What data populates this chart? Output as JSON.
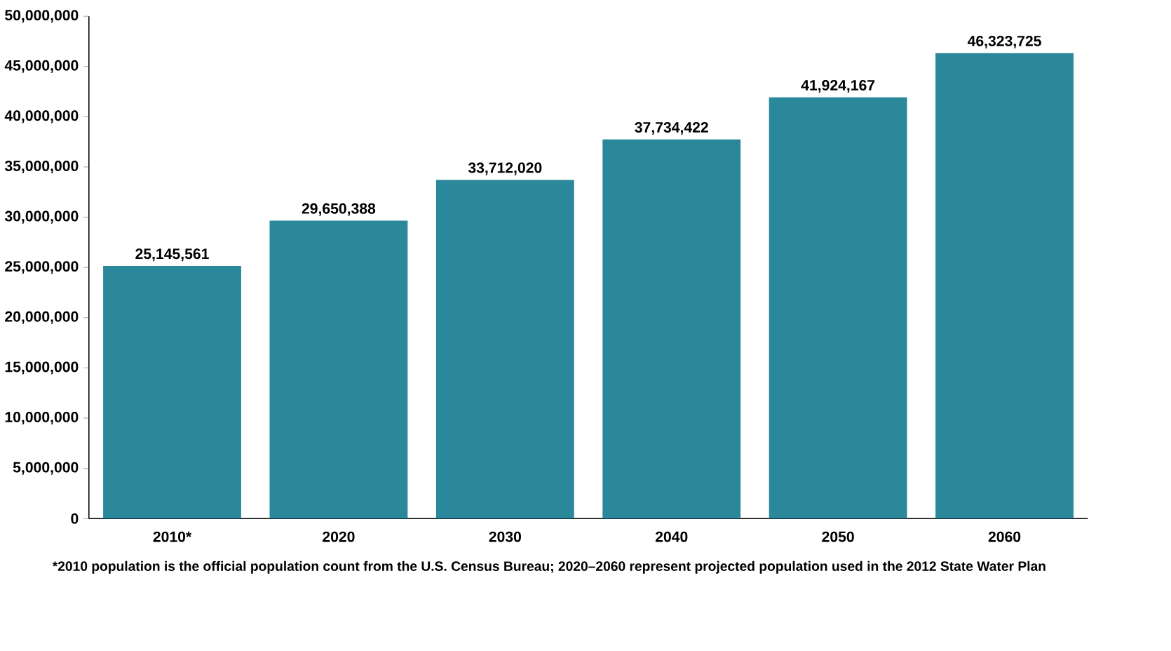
{
  "chart_data": {
    "type": "bar",
    "categories": [
      "2010*",
      "2020",
      "2030",
      "2040",
      "2050",
      "2060"
    ],
    "values": [
      25145561,
      29650388,
      33712020,
      37734422,
      41924167,
      46323725
    ],
    "value_labels": [
      "25,145,561",
      "29,650,388",
      "33,712,020",
      "37,734,422",
      "41,924,167",
      "46,323,725"
    ],
    "color": "#2b889b",
    "ylim": [
      0,
      50000000
    ],
    "yticks": [
      {
        "value": 0,
        "label": "0"
      },
      {
        "value": 5000000,
        "label": "5,000,000"
      },
      {
        "value": 10000000,
        "label": "10,000,000"
      },
      {
        "value": 15000000,
        "label": "15,000,000"
      },
      {
        "value": 20000000,
        "label": "20,000,000"
      },
      {
        "value": 25000000,
        "label": "25,000,000"
      },
      {
        "value": 30000000,
        "label": "30,000,000"
      },
      {
        "value": 35000000,
        "label": "35,000,000"
      },
      {
        "value": 40000000,
        "label": "40,000,000"
      },
      {
        "value": 45000000,
        "label": "45,000,000"
      },
      {
        "value": 50000000,
        "label": "50,000,000"
      }
    ],
    "annotations": [
      "*2010 population is the official population count from the U.S. Census Bureau; 2020–2060 represent projected population used in the 2012 State Water Plan"
    ]
  }
}
